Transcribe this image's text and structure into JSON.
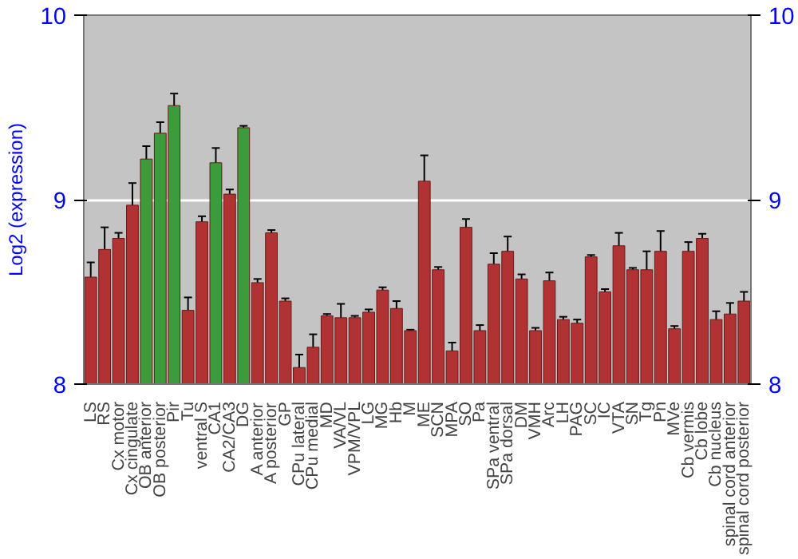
{
  "chart_data": {
    "type": "bar",
    "ylabel": "Log2 (expression)",
    "categories": [
      "LS",
      "RS",
      "Cx motor",
      "Cx cingulate",
      "OB anterior",
      "OB posterior",
      "Pir",
      "Tu",
      "ventral S",
      "CA1",
      "CA2/CA3",
      "DG",
      "A anterior",
      "A posterior",
      "GP",
      "CPu lateral",
      "CPu medial",
      "MD",
      "VA/VL",
      "VPM/VPL",
      "LG",
      "MG",
      "Hb",
      "M",
      "ME",
      "SCN",
      "MPA",
      "SO",
      "Pa",
      "SPa ventral",
      "SPa dorsal",
      "DM",
      "VMH",
      "Arc",
      "LH",
      "PAG",
      "SC",
      "IC",
      "VTA",
      "SN",
      "Tg",
      "Pn",
      "MVe",
      "Cb vermis",
      "Cb lobe",
      "Cb nucleus",
      "spinal cord anterior",
      "spinal cord posterior"
    ],
    "values": [
      8.58,
      8.73,
      8.79,
      8.97,
      9.22,
      9.36,
      9.51,
      8.4,
      8.88,
      9.2,
      9.03,
      9.39,
      8.55,
      8.82,
      8.45,
      8.09,
      8.2,
      8.37,
      8.36,
      8.36,
      8.39,
      8.51,
      8.41,
      8.29,
      9.1,
      8.62,
      8.18,
      8.85,
      8.29,
      8.65,
      8.72,
      8.57,
      8.29,
      8.56,
      8.35,
      8.33,
      8.69,
      8.5,
      8.75,
      8.62,
      8.62,
      8.72,
      8.3,
      8.72,
      8.79,
      8.35,
      8.38,
      8.45
    ],
    "errors": [
      0.08,
      0.12,
      0.03,
      0.12,
      0.07,
      0.06,
      0.065,
      0.07,
      0.03,
      0.08,
      0.025,
      0.01,
      0.02,
      0.015,
      0.015,
      0.07,
      0.07,
      0.01,
      0.075,
      0.01,
      0.015,
      0.015,
      0.04,
      0.005,
      0.14,
      0.015,
      0.045,
      0.045,
      0.03,
      0.06,
      0.08,
      0.025,
      0.015,
      0.045,
      0.015,
      0.02,
      0.01,
      0.015,
      0.07,
      0.01,
      0.1,
      0.11,
      0.015,
      0.05,
      0.025,
      0.045,
      0.06,
      0.05
    ],
    "colors": [
      "#b03232",
      "#b03232",
      "#b03232",
      "#b03232",
      "#3c9c3c",
      "#3c9c3c",
      "#3c9c3c",
      "#b03232",
      "#b03232",
      "#3c9c3c",
      "#b03232",
      "#3c9c3c",
      "#b03232",
      "#b03232",
      "#b03232",
      "#b03232",
      "#b03232",
      "#b03232",
      "#b03232",
      "#b03232",
      "#b03232",
      "#b03232",
      "#b03232",
      "#b03232",
      "#b03232",
      "#b03232",
      "#b03232",
      "#b03232",
      "#b03232",
      "#b03232",
      "#b03232",
      "#b03232",
      "#b03232",
      "#b03232",
      "#b03232",
      "#b03232",
      "#b03232",
      "#b03232",
      "#b03232",
      "#b03232",
      "#b03232",
      "#b03232",
      "#b03232",
      "#b03232",
      "#b03232",
      "#b03232",
      "#b03232",
      "#b03232"
    ],
    "ylim": [
      8,
      10
    ],
    "yticks": [
      8,
      9,
      10
    ],
    "y2lim": [
      8,
      10
    ],
    "y2ticks": [
      8,
      9,
      10
    ],
    "grid": "y"
  }
}
